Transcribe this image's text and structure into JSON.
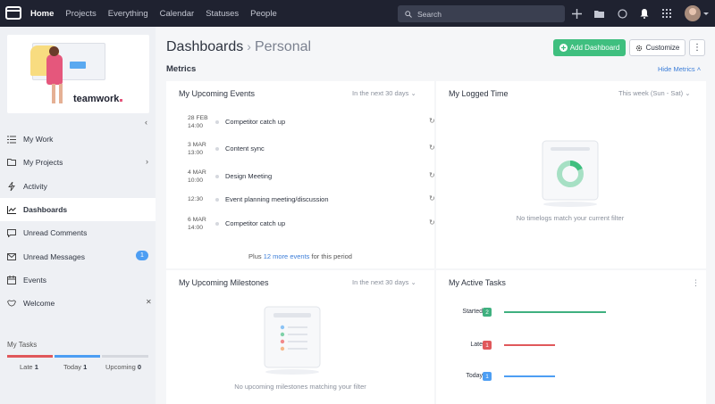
{
  "nav": {
    "items": [
      "Home",
      "Projects",
      "Everything",
      "Calendar",
      "Statuses",
      "People"
    ],
    "search_placeholder": "Search"
  },
  "sidebar": {
    "brand": "teamwork",
    "items": [
      {
        "label": "My Work",
        "icon": "my-work-icon"
      },
      {
        "label": "My Projects",
        "icon": "folder-icon"
      },
      {
        "label": "Activity",
        "icon": "bolt-icon"
      },
      {
        "label": "Dashboards",
        "icon": "dashboard-icon"
      },
      {
        "label": "Unread Comments",
        "icon": "comment-icon"
      },
      {
        "label": "Unread Messages",
        "icon": "envelope-icon",
        "badge": "1"
      },
      {
        "label": "Events",
        "icon": "calendar-icon"
      },
      {
        "label": "Welcome",
        "icon": "handshake-icon"
      }
    ],
    "my_tasks": {
      "title": "My Tasks",
      "late_label": "Late",
      "late_count": "1",
      "today_label": "Today",
      "today_count": "1",
      "upcoming_label": "Upcoming",
      "upcoming_count": "0"
    }
  },
  "main": {
    "breadcrumb_root": "Dashboards",
    "breadcrumb_current": "Personal",
    "add_dashboard": "Add Dashboard",
    "customize": "Customize",
    "metrics_title": "Metrics",
    "hide_metrics": "Hide Metrics",
    "events_panel": {
      "title": "My Upcoming Events",
      "filter": "In the next 30 days",
      "events": [
        {
          "date": "28 FEB",
          "time": "14:00",
          "name": "Competitor catch up"
        },
        {
          "date": "3 MAR",
          "time": "13:00",
          "name": "Content sync"
        },
        {
          "date": "4 MAR",
          "time": "10:00",
          "name": "Design Meeting"
        },
        {
          "date": "",
          "time": "12:30",
          "name": "Event planning meeting/discussion"
        },
        {
          "date": "6 MAR",
          "time": "14:00",
          "name": "Competitor catch up"
        }
      ],
      "more_prefix": "Plus",
      "more_link": "12 more events",
      "more_suffix": "for this period"
    },
    "logged_panel": {
      "title": "My Logged Time",
      "filter": "This week (Sun - Sat)",
      "empty": "No timelogs match your current filter"
    },
    "milestones_panel": {
      "title": "My Upcoming Milestones",
      "filter": "In the next 30 days",
      "empty": "No upcoming milestones matching your filter"
    },
    "tasks_panel": {
      "title": "My Active Tasks",
      "tasks": [
        {
          "label": "Started",
          "count": "2",
          "color": "#3fb07f",
          "bar_fraction": 0.6
        },
        {
          "label": "Late",
          "count": "1",
          "color": "#e0585b",
          "bar_fraction": 0.3
        },
        {
          "label": "Today",
          "count": "1",
          "color": "#4d9ef3",
          "bar_fraction": 0.3
        }
      ]
    }
  },
  "colors": {
    "accent_green": "#3fbf7f",
    "link_blue": "#3b7dd8",
    "late_red": "#e0585b",
    "today_blue": "#4d9ef3"
  }
}
